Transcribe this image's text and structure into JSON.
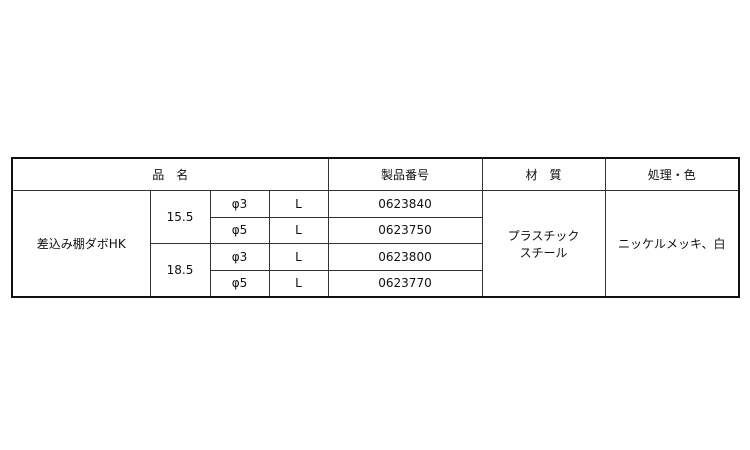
{
  "table": {
    "headers": {
      "product_name": "品　名",
      "product_number": "製品番号",
      "material": "材　質",
      "finish_color": "処理・色"
    },
    "product": "差込み棚ダボHK",
    "groups": [
      {
        "length": "15.5",
        "rows": [
          {
            "diameter": "φ3",
            "type": "L",
            "number": "0623840"
          },
          {
            "diameter": "φ5",
            "type": "L",
            "number": "0623750"
          }
        ]
      },
      {
        "length": "18.5",
        "rows": [
          {
            "diameter": "φ3",
            "type": "L",
            "number": "0623800"
          },
          {
            "diameter": "φ5",
            "type": "L",
            "number": "0623770"
          }
        ]
      }
    ],
    "material_line1": "プラスチック",
    "material_line2": "スチール",
    "finish": "ニッケルメッキ、白"
  }
}
